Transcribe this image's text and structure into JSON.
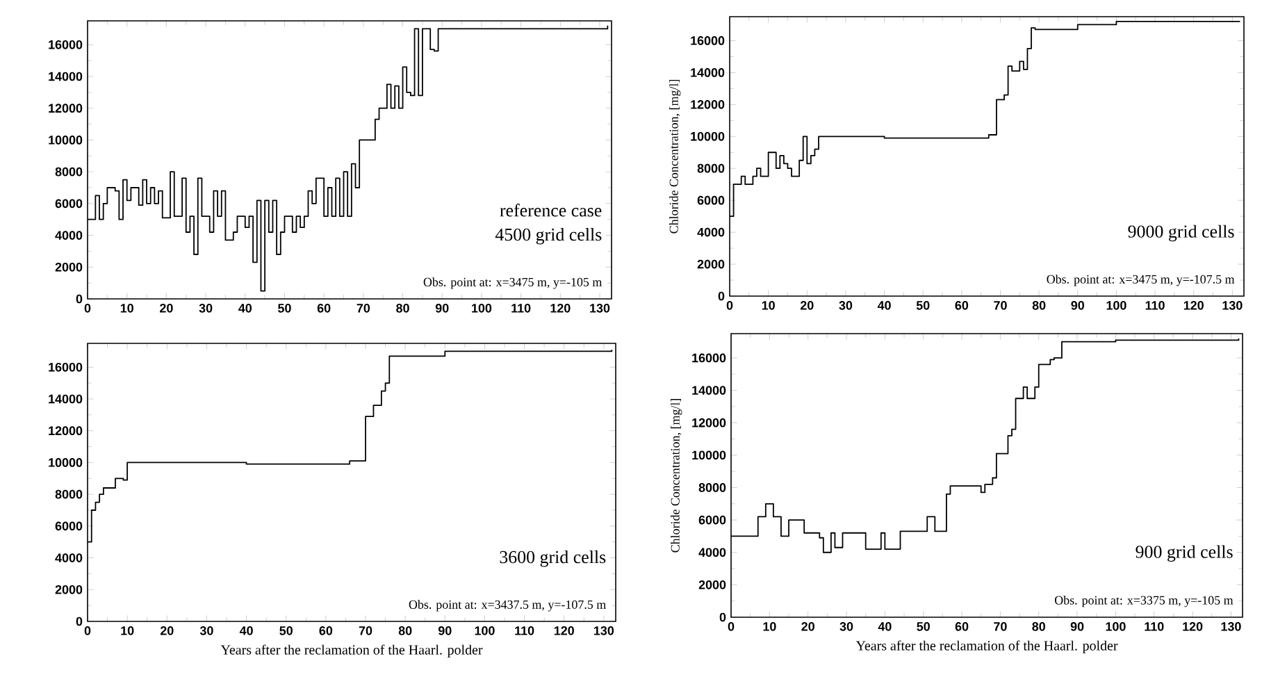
{
  "chart_data": [
    {
      "type": "step",
      "xlim": [
        0,
        133
      ],
      "ylim": [
        0,
        17500
      ],
      "xticks": [
        0,
        10,
        20,
        30,
        40,
        50,
        60,
        70,
        80,
        90,
        100,
        110,
        120,
        130
      ],
      "yticks": [
        0,
        2000,
        4000,
        6000,
        8000,
        10000,
        12000,
        14000,
        16000
      ],
      "grid": false,
      "annotations": [
        "reference case",
        "4500 grid cells",
        "Obs. point at: x=3475 m, y=-105 m"
      ],
      "series": [
        {
          "color": "#000000",
          "x": [
            0,
            2,
            3,
            4,
            5,
            7,
            8,
            9,
            10,
            11,
            13,
            14,
            15,
            16,
            17,
            18,
            19,
            21,
            22,
            24,
            25,
            26,
            27,
            28,
            29,
            31,
            32,
            33,
            34,
            35,
            37,
            38,
            40,
            41,
            42,
            43,
            44,
            45,
            46,
            47,
            48,
            49,
            50,
            52,
            53,
            54,
            55,
            56,
            57,
            58,
            60,
            61,
            62,
            63,
            64,
            65,
            66,
            67,
            68,
            69,
            73,
            74,
            76,
            77,
            78,
            79,
            80,
            81,
            82,
            83,
            84,
            85,
            87,
            88,
            89,
            100,
            132
          ],
          "values": [
            5000,
            6500,
            5000,
            6000,
            7000,
            6800,
            5000,
            7500,
            6200,
            7000,
            5900,
            7500,
            6000,
            7000,
            6000,
            6800,
            5100,
            8000,
            5200,
            7600,
            4200,
            5200,
            2800,
            7600,
            5200,
            4200,
            6800,
            5200,
            6800,
            3700,
            4200,
            5200,
            4500,
            5200,
            2300,
            6200,
            500,
            6200,
            4200,
            6200,
            2800,
            4200,
            5200,
            4200,
            5200,
            4500,
            5200,
            6800,
            6000,
            7600,
            5200,
            7000,
            5200,
            7600,
            5200,
            8000,
            5200,
            8500,
            7000,
            10000,
            11300,
            12000,
            13500,
            12000,
            13400,
            12000,
            14600,
            13000,
            12800,
            17000,
            12800,
            17000,
            15700,
            15600,
            17000,
            17000,
            17200
          ]
        }
      ]
    },
    {
      "type": "step",
      "xlim": [
        0,
        133
      ],
      "ylim": [
        0,
        17500
      ],
      "xticks": [
        0,
        10,
        20,
        30,
        40,
        50,
        60,
        70,
        80,
        90,
        100,
        110,
        120,
        130
      ],
      "yticks": [
        0,
        2000,
        4000,
        6000,
        8000,
        10000,
        12000,
        14000,
        16000
      ],
      "grid": false,
      "ylabel": "Chloride Concentration, [mg/l]",
      "annotations": [
        "9000 grid cells",
        "Obs. point at: x=3475 m, y=-107.5 m"
      ],
      "series": [
        {
          "color": "#000000",
          "x": [
            0,
            1,
            3,
            4,
            6,
            7,
            8,
            10,
            12,
            13,
            14,
            15,
            16,
            18,
            19,
            20,
            21,
            22,
            23,
            40,
            55,
            67,
            69,
            71,
            72,
            73,
            75,
            76,
            77,
            78,
            79,
            90,
            100,
            132
          ],
          "values": [
            5000,
            7000,
            7500,
            7000,
            7500,
            8000,
            7500,
            9000,
            8000,
            8800,
            8300,
            8000,
            7500,
            8500,
            10000,
            8300,
            8800,
            9200,
            10000,
            9900,
            9900,
            10100,
            12300,
            12600,
            14400,
            14100,
            14700,
            14200,
            15500,
            16800,
            16700,
            17000,
            17200,
            17200
          ]
        }
      ]
    },
    {
      "type": "step",
      "xlim": [
        0,
        133
      ],
      "ylim": [
        0,
        17500
      ],
      "xticks": [
        0,
        10,
        20,
        30,
        40,
        50,
        60,
        70,
        80,
        90,
        100,
        110,
        120,
        130
      ],
      "yticks": [
        0,
        2000,
        4000,
        6000,
        8000,
        10000,
        12000,
        14000,
        16000
      ],
      "grid": false,
      "xlabel": "Years after the reclamation of the Haarl. polder",
      "annotations": [
        "3600 grid cells",
        "Obs. point at: x=3437.5 m, y=-107.5 m"
      ],
      "series": [
        {
          "color": "#000000",
          "x": [
            0,
            1,
            2,
            3,
            4,
            7,
            9,
            10,
            40,
            60,
            66,
            70,
            72,
            74,
            75,
            76,
            90,
            132
          ],
          "values": [
            5000,
            7000,
            7500,
            8000,
            8400,
            9000,
            8900,
            10000,
            9900,
            9900,
            10100,
            12900,
            13600,
            14500,
            15000,
            16700,
            17000,
            17100
          ]
        }
      ]
    },
    {
      "type": "step",
      "xlim": [
        0,
        133
      ],
      "ylim": [
        0,
        17500
      ],
      "xticks": [
        0,
        10,
        20,
        30,
        40,
        50,
        60,
        70,
        80,
        90,
        100,
        110,
        120,
        130
      ],
      "yticks": [
        0,
        2000,
        4000,
        6000,
        8000,
        10000,
        12000,
        14000,
        16000
      ],
      "grid": false,
      "xlabel": "Years after the reclamation of the Haarl. polder",
      "ylabel": "Chloride Concentration, [mg/l]",
      "annotations": [
        "900 grid cells",
        "Obs. point at: x=3375 m, y=-105 m"
      ],
      "series": [
        {
          "color": "#000000",
          "x": [
            0,
            7,
            9,
            11,
            13,
            15,
            19,
            23,
            24,
            26,
            27,
            29,
            35,
            39,
            40,
            44,
            51,
            53,
            56,
            57,
            65,
            66,
            68,
            69,
            72,
            73,
            74,
            76,
            77,
            79,
            80,
            83,
            84,
            86,
            100,
            132
          ],
          "values": [
            5000,
            6200,
            7000,
            6200,
            5000,
            6000,
            5200,
            4900,
            4000,
            5200,
            4300,
            5200,
            4200,
            5200,
            4200,
            5300,
            6200,
            5300,
            7600,
            8100,
            7700,
            8200,
            8600,
            10100,
            11200,
            11600,
            13500,
            14200,
            13500,
            14200,
            15600,
            15900,
            16000,
            17000,
            17100,
            17200
          ]
        }
      ]
    }
  ]
}
